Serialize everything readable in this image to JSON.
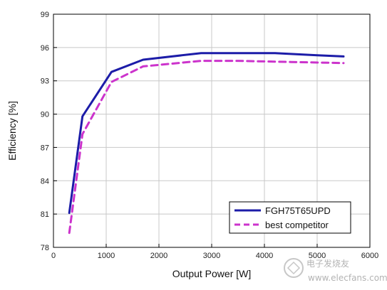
{
  "chart_data": {
    "type": "line",
    "title": "",
    "xlabel": "Output Power [W]",
    "ylabel": "Efficiency [%]",
    "xlim": [
      0,
      6000
    ],
    "ylim": [
      78,
      99
    ],
    "xticks": [
      0,
      1000,
      2000,
      3000,
      4000,
      5000,
      6000
    ],
    "yticks": [
      78,
      81,
      84,
      87,
      90,
      93,
      96,
      99
    ],
    "grid": true,
    "legend_position": "bottom-right",
    "series": [
      {
        "name": "FGH75T65UPD",
        "color": "#1c1ca8",
        "style": "solid",
        "x": [
          300,
          550,
          1100,
          1700,
          2800,
          4200,
          5000,
          5500
        ],
        "y": [
          81.1,
          89.8,
          93.8,
          94.9,
          95.5,
          95.5,
          95.3,
          95.2
        ]
      },
      {
        "name": "best competitor",
        "color": "#cc33cc",
        "style": "dashed",
        "x": [
          300,
          550,
          1100,
          1700,
          2800,
          3500,
          4500,
          5500
        ],
        "y": [
          79.3,
          88.2,
          92.9,
          94.3,
          94.8,
          94.8,
          94.7,
          94.6
        ]
      }
    ]
  },
  "watermark": {
    "text": "电子发烧友",
    "url": "www.elecfans.com"
  }
}
